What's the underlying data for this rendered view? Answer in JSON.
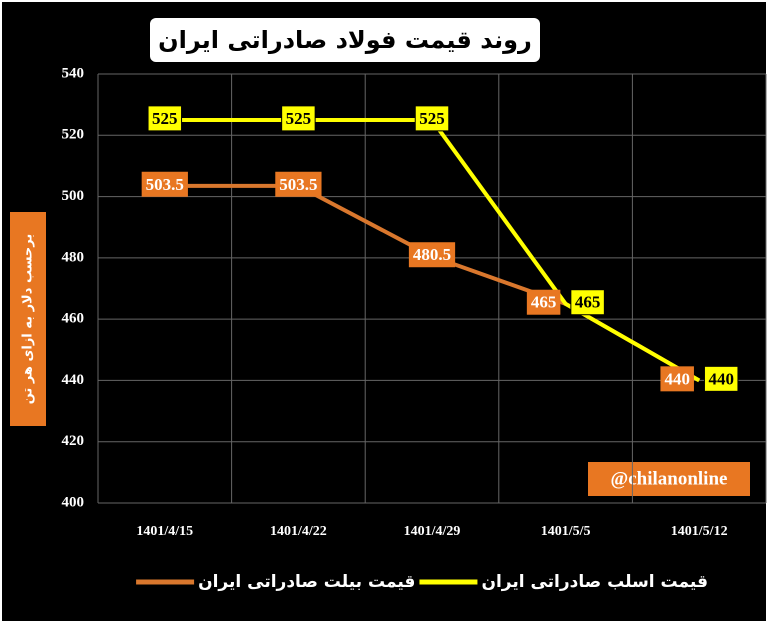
{
  "chart_data": {
    "type": "line",
    "title": "روند قیمت فولاد صادراتی ایران",
    "y_label": "برحسب دلار به ازای هر تن",
    "watermark": "@chilanonline",
    "categories": [
      "1401/4/15",
      "1401/4/22",
      "1401/4/29",
      "1401/5/5",
      "1401/5/12"
    ],
    "series": [
      {
        "name": "قیمت بیلت صادراتی ایران",
        "color": "#d9772d",
        "values": [
          503.5,
          503.5,
          480.5,
          465,
          440
        ]
      },
      {
        "name": "قیمت اسلب صادراتی ایران",
        "color": "#ffff00",
        "values": [
          525,
          525,
          525,
          465,
          440
        ]
      }
    ],
    "ylim": [
      400,
      540
    ],
    "yticks": [
      400,
      420,
      440,
      460,
      480,
      500,
      520,
      540
    ],
    "grid": true
  }
}
